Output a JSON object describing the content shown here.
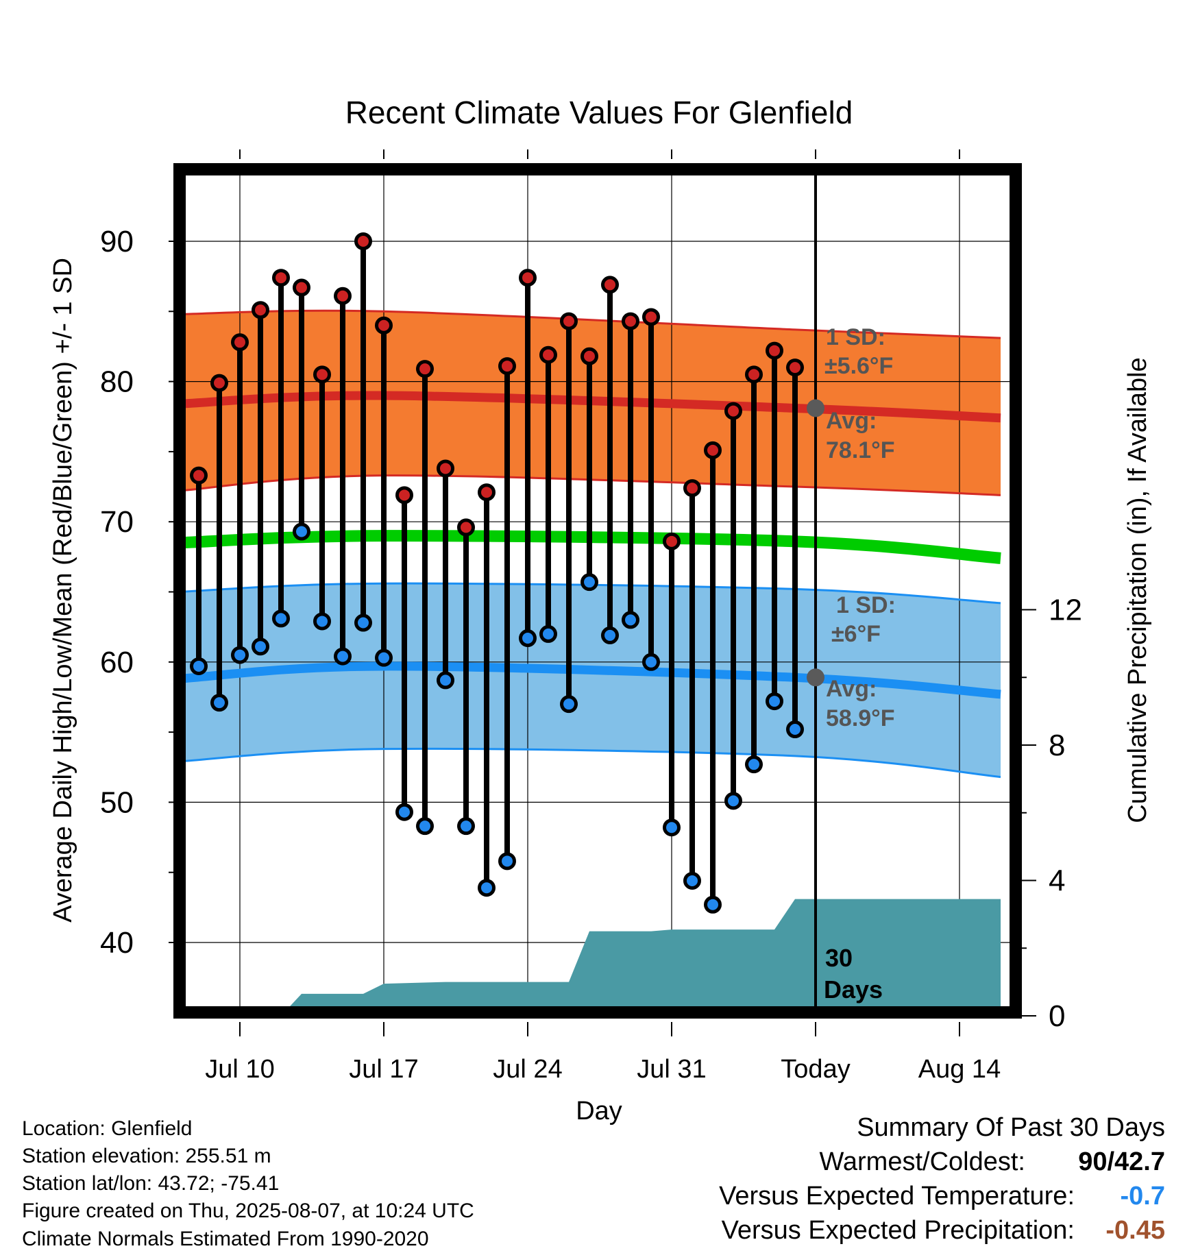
{
  "chart_data": {
    "type": "line",
    "title": "Recent Climate Values For Glenfield",
    "xlabel": "Day",
    "ylabel": "Average Daily High/Low/Mean (Red/Blue/Green) +/- 1 SD",
    "y2label": "Cumulative Precipitation (in), If Available",
    "ylim": [
      35,
      96
    ],
    "y2lim": [
      0,
      30
    ],
    "yticks": [
      "40",
      "50",
      "60",
      "70",
      "80",
      "90"
    ],
    "y2ticks": [
      "0",
      "4",
      "8",
      "12"
    ],
    "xticks": [
      "Jul 10",
      "Jul 17",
      "Jul 24",
      "Jul 31",
      "Today",
      "Aug 14"
    ],
    "today_label": "Today",
    "period_label": [
      "30",
      "Days"
    ],
    "days": [
      "Jul 8",
      "Jul 9",
      "Jul 10",
      "Jul 11",
      "Jul 12",
      "Jul 13",
      "Jul 14",
      "Jul 15",
      "Jul 16",
      "Jul 17",
      "Jul 18",
      "Jul 19",
      "Jul 20",
      "Jul 21",
      "Jul 22",
      "Jul 23",
      "Jul 24",
      "Jul 25",
      "Jul 26",
      "Jul 27",
      "Jul 28",
      "Jul 29",
      "Jul 30",
      "Jul 31",
      "Aug 1",
      "Aug 2",
      "Aug 3",
      "Aug 4",
      "Aug 5",
      "Aug 6"
    ],
    "daily_high": [
      73.3,
      79.9,
      82.8,
      85.1,
      87.4,
      86.7,
      80.5,
      86.1,
      90.0,
      84.0,
      71.9,
      80.9,
      73.8,
      69.6,
      72.1,
      81.1,
      87.4,
      81.9,
      84.3,
      81.8,
      86.9,
      84.3,
      84.6,
      68.6,
      72.4,
      75.1,
      77.9,
      80.5,
      82.2,
      81.0
    ],
    "daily_low": [
      59.7,
      57.1,
      60.5,
      61.1,
      63.1,
      69.3,
      62.9,
      60.4,
      62.8,
      60.3,
      49.3,
      48.3,
      58.7,
      48.3,
      43.9,
      45.8,
      61.7,
      62.0,
      57.0,
      65.7,
      61.9,
      63.0,
      60.0,
      48.2,
      44.4,
      42.7,
      50.1,
      52.7,
      57.2,
      55.2
    ],
    "normals": {
      "high_avg": [
        78.4,
        79.0,
        78.1,
        77.4
      ],
      "high_sd_upper": [
        84.8,
        85.0,
        83.7,
        83.1
      ],
      "high_sd_lower": [
        72.2,
        73.3,
        72.5,
        71.9
      ],
      "mean_avg": [
        68.5,
        69.0,
        68.6,
        67.4
      ],
      "low_avg": [
        58.8,
        59.7,
        58.9,
        57.7
      ],
      "low_sd_upper": [
        65.0,
        65.6,
        65.2,
        64.2
      ],
      "low_sd_lower": [
        52.9,
        53.8,
        53.3,
        51.8
      ]
    },
    "precip_cumulative": [
      {
        "day": "Jul 12",
        "value": 0.0
      },
      {
        "day": "Jul 13",
        "value": 0.65
      },
      {
        "day": "Jul 16",
        "value": 0.65
      },
      {
        "day": "Jul 17",
        "value": 0.95
      },
      {
        "day": "Jul 20",
        "value": 1.0
      },
      {
        "day": "Jul 26",
        "value": 1.0
      },
      {
        "day": "Jul 27",
        "value": 2.5
      },
      {
        "day": "Jul 30",
        "value": 2.5
      },
      {
        "day": "Jul 31",
        "value": 2.55
      },
      {
        "day": "Aug 5",
        "value": 2.55
      },
      {
        "day": "Aug 6",
        "value": 3.45
      },
      {
        "day": "Aug 16",
        "value": 3.45
      }
    ],
    "high_annotation": {
      "sd_label": "1 SD:",
      "sd_value": "±5.6°F",
      "avg_label": "Avg:",
      "avg_value": "78.1°F"
    },
    "low_annotation": {
      "sd_label": "1 SD:",
      "sd_value": "±6°F",
      "avg_label": "Avg:",
      "avg_value": "58.9°F"
    },
    "grid": true,
    "colors": {
      "high_band": "#f47b30",
      "high_line": "#d42a24",
      "low_band": "#82c0e8",
      "low_line": "#1b8ff3",
      "mean_line": "#00cc00",
      "precip": "#4a9aa4",
      "high_dot": "#cc2222",
      "low_dot": "#2288ee",
      "annotation": "#555555"
    }
  },
  "station": {
    "location": "Location: Glenfield",
    "elevation": "Station elevation: 255.51 m",
    "latlon": "Station lat/lon: 43.72; -75.41",
    "created": "Figure created on Thu, 2025-08-07, at 10:24 UTC",
    "normals": "Climate Normals Estimated From 1990-2020"
  },
  "summary": {
    "title": "Summary Of Past 30 Days",
    "warmest_coldest_label": "Warmest/Coldest:",
    "warmest_coldest_value": "90/42.7",
    "temp_label": "Versus Expected Temperature:",
    "temp_value": "-0.7",
    "temp_color": "#2288ee",
    "precip_label": "Versus Expected Precipitation:",
    "precip_value": "-0.45",
    "precip_color": "#a0522d"
  }
}
